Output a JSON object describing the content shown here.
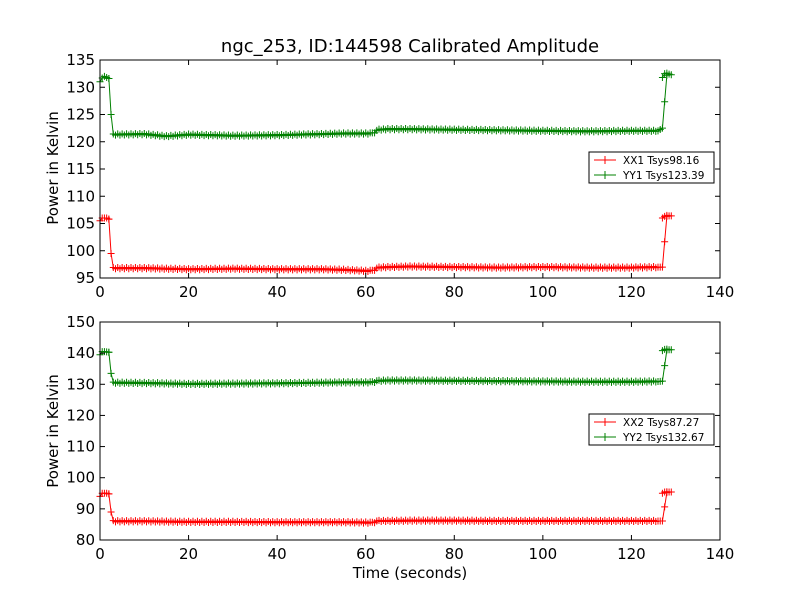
{
  "chart_data": [
    {
      "type": "line",
      "title": "ngc_253, ID:144598 Calibrated Amplitude",
      "xlabel": "",
      "ylabel": "Power in Kelvin",
      "xlim": [
        0,
        140
      ],
      "ylim": [
        95,
        135
      ],
      "xticks": [
        0,
        20,
        40,
        60,
        80,
        100,
        120,
        140
      ],
      "yticks": [
        95,
        100,
        105,
        110,
        115,
        120,
        125,
        130,
        135
      ],
      "legend_position": "center-right",
      "series": [
        {
          "name": "XX1 Tsys98.16",
          "color": "#ff0000",
          "segments": [
            {
              "x": [
                0,
                0.5,
                1,
                1.5,
                2
              ],
              "y": [
                105.5,
                106,
                106,
                106,
                105.8
              ]
            },
            {
              "x": [
                2,
                2.5,
                3,
                10,
                20,
                30,
                40,
                50,
                55,
                60,
                61.5,
                63,
                65,
                70,
                80,
                90,
                100,
                110,
                120,
                126,
                127,
                128
              ],
              "y": [
                105.8,
                99.5,
                96.8,
                96.8,
                96.6,
                96.7,
                96.6,
                96.6,
                96.5,
                96.3,
                96.3,
                96.9,
                97,
                97.1,
                97,
                96.9,
                97,
                96.9,
                96.9,
                97,
                97,
                106.3
              ]
            },
            {
              "x": [
                127,
                127.5,
                128,
                128.5,
                129
              ],
              "y": [
                106,
                106.3,
                106.5,
                106.4,
                106.4
              ]
            }
          ]
        },
        {
          "name": "YY1 Tsys123.39",
          "color": "#008000",
          "segments": [
            {
              "x": [
                0,
                0.5,
                1,
                1.5,
                2
              ],
              "y": [
                131,
                131.7,
                132,
                131.8,
                131.6
              ]
            },
            {
              "x": [
                2,
                2.5,
                3,
                10,
                15,
                20,
                30,
                40,
                50,
                55,
                60,
                61.5,
                63,
                65,
                70,
                80,
                90,
                100,
                110,
                120,
                126,
                127,
                128
              ],
              "y": [
                131.6,
                125,
                121.3,
                121.4,
                121,
                121.3,
                121.1,
                121.2,
                121.4,
                121.5,
                121.5,
                121.5,
                122.2,
                122.3,
                122.3,
                122.2,
                122.1,
                122,
                121.9,
                122,
                122,
                122.5,
                132.2
              ]
            },
            {
              "x": [
                127,
                127.5,
                128,
                128.5,
                129
              ],
              "y": [
                131.8,
                132.5,
                132.6,
                132.4,
                132.3
              ]
            }
          ]
        }
      ]
    },
    {
      "type": "line",
      "title": "",
      "xlabel": "Time (seconds)",
      "ylabel": "Power in Kelvin",
      "xlim": [
        0,
        140
      ],
      "ylim": [
        80,
        150
      ],
      "xticks": [
        0,
        20,
        40,
        60,
        80,
        100,
        120,
        140
      ],
      "yticks": [
        80,
        90,
        100,
        110,
        120,
        130,
        140,
        150
      ],
      "legend_position": "center-right",
      "series": [
        {
          "name": "XX2 Tsys87.27",
          "color": "#ff0000",
          "segments": [
            {
              "x": [
                0,
                0.5,
                1,
                1.5,
                2
              ],
              "y": [
                94,
                95,
                95,
                95,
                94.8
              ]
            },
            {
              "x": [
                2,
                2.5,
                3,
                10,
                20,
                30,
                40,
                50,
                55,
                60,
                61.5,
                63,
                65,
                70,
                80,
                90,
                100,
                110,
                120,
                126,
                127,
                128
              ],
              "y": [
                94.8,
                89,
                86,
                86,
                85.8,
                85.8,
                85.7,
                85.7,
                85.7,
                85.6,
                85.5,
                86.1,
                86.1,
                86.2,
                86.2,
                86.1,
                86.1,
                86.1,
                86.1,
                86.1,
                86.1,
                95.2
              ]
            },
            {
              "x": [
                127,
                127.5,
                128,
                128.5,
                129
              ],
              "y": [
                95,
                95.4,
                95.5,
                95.4,
                95.4
              ]
            }
          ]
        },
        {
          "name": "YY2 Tsys132.67",
          "color": "#008000",
          "segments": [
            {
              "x": [
                0,
                0.5,
                1,
                1.5,
                2
              ],
              "y": [
                139.5,
                140.5,
                140.5,
                140.4,
                140.3
              ]
            },
            {
              "x": [
                2,
                2.5,
                3,
                10,
                20,
                30,
                40,
                50,
                55,
                60,
                61.5,
                63,
                65,
                70,
                80,
                90,
                100,
                110,
                120,
                126,
                127,
                128
              ],
              "y": [
                140.3,
                133.5,
                130.5,
                130.4,
                130.1,
                130.2,
                130.3,
                130.5,
                130.6,
                130.6,
                130.6,
                131.1,
                131.2,
                131.2,
                131.1,
                131,
                130.9,
                130.8,
                130.8,
                130.9,
                131,
                141
              ]
            },
            {
              "x": [
                127,
                127.5,
                128,
                128.5,
                129
              ],
              "y": [
                140.8,
                141.2,
                141.3,
                141.1,
                141.1
              ]
            }
          ]
        }
      ]
    }
  ]
}
